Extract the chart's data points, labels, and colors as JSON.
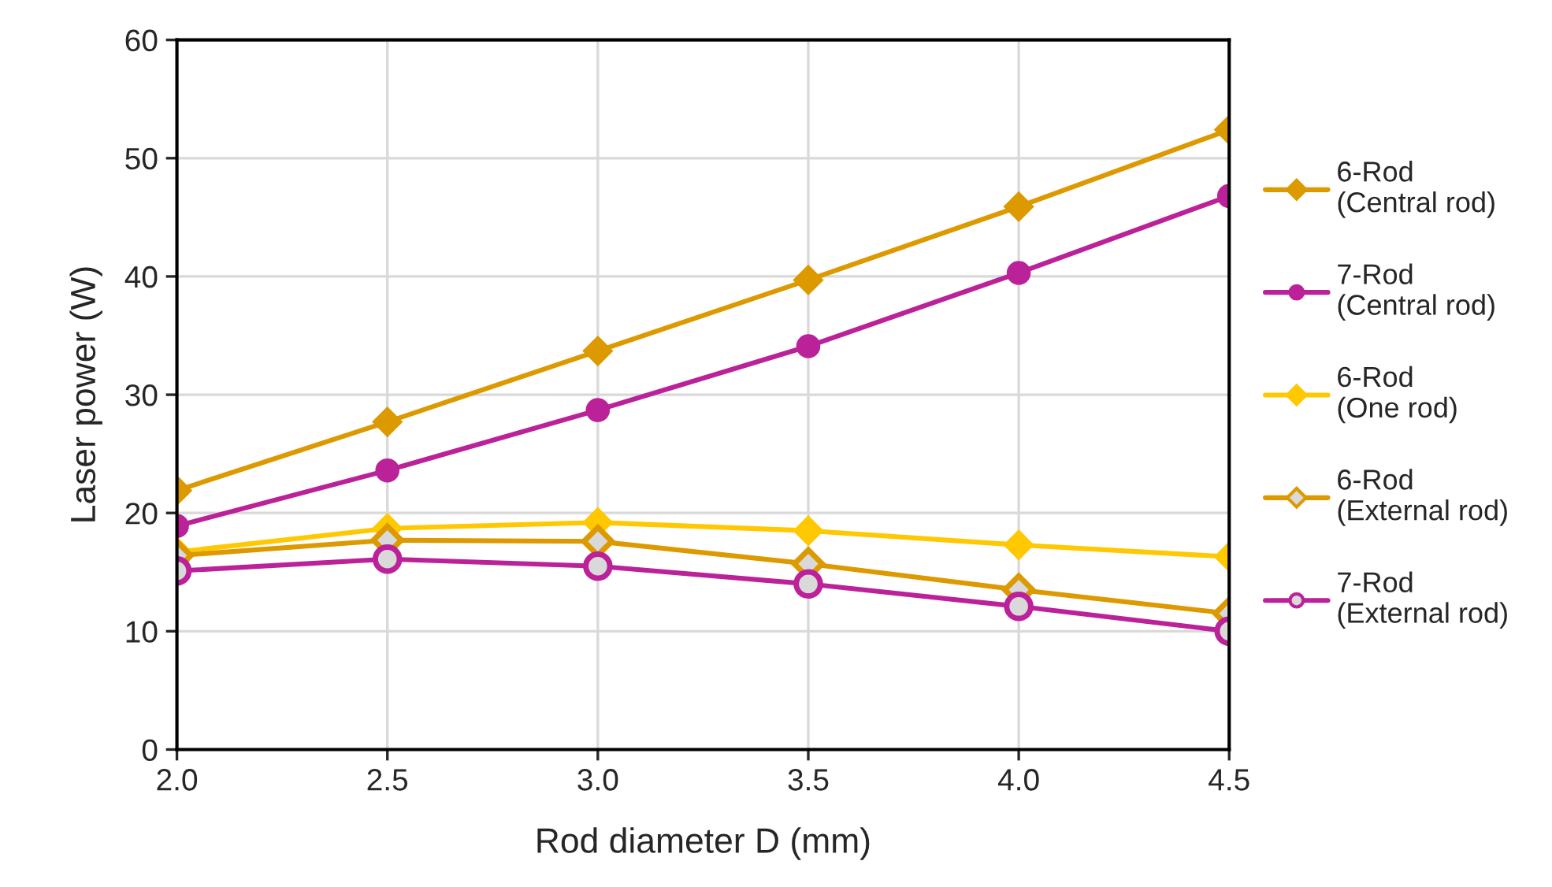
{
  "chart_data": {
    "type": "line",
    "xlabel": "Rod diameter D (mm)",
    "ylabel": "Laser power (W)",
    "x": [
      2.0,
      2.5,
      3.0,
      3.5,
      4.0,
      4.5
    ],
    "series": [
      {
        "name": "6-Rod\n(Central rod)",
        "color": "#dd9900",
        "marker": "diamond",
        "values": [
          21.9,
          27.7,
          33.7,
          39.7,
          45.9,
          52.4
        ]
      },
      {
        "name": "7-Rod\n(Central rod)",
        "color": "#bb2299",
        "marker": "circle",
        "values": [
          18.9,
          23.6,
          28.7,
          34.1,
          40.3,
          46.8
        ]
      },
      {
        "name": "6-Rod\n(One rod)",
        "color": "#ffc800",
        "marker": "diamond",
        "values": [
          16.7,
          18.7,
          19.2,
          18.5,
          17.3,
          16.3
        ]
      },
      {
        "name": "6-Rod\n(External rod)",
        "color": "#dd9900",
        "marker": "diamond",
        "values": [
          16.4,
          17.7,
          17.6,
          15.7,
          13.5,
          11.5
        ]
      },
      {
        "name": "7-Rod\n(External rod)",
        "color": "#bb2299",
        "marker": "circle",
        "values": [
          15.1,
          16.1,
          15.5,
          14.0,
          12.1,
          10.0
        ]
      }
    ],
    "xlim": [
      2.0,
      4.5
    ],
    "xticks": [
      {
        "value": 2.0,
        "label": "2.0"
      },
      {
        "value": 2.5,
        "label": "2.5"
      },
      {
        "value": 3.0,
        "label": "3.0"
      },
      {
        "value": 3.5,
        "label": "3.5"
      },
      {
        "value": 4.0,
        "label": "4.0"
      },
      {
        "value": 4.5,
        "label": "4.5"
      }
    ],
    "ylim": [
      0,
      60
    ],
    "yticks": [
      0,
      10,
      20,
      30,
      40,
      50,
      60
    ],
    "grid": true,
    "legend": "right",
    "line_style": "solid"
  }
}
